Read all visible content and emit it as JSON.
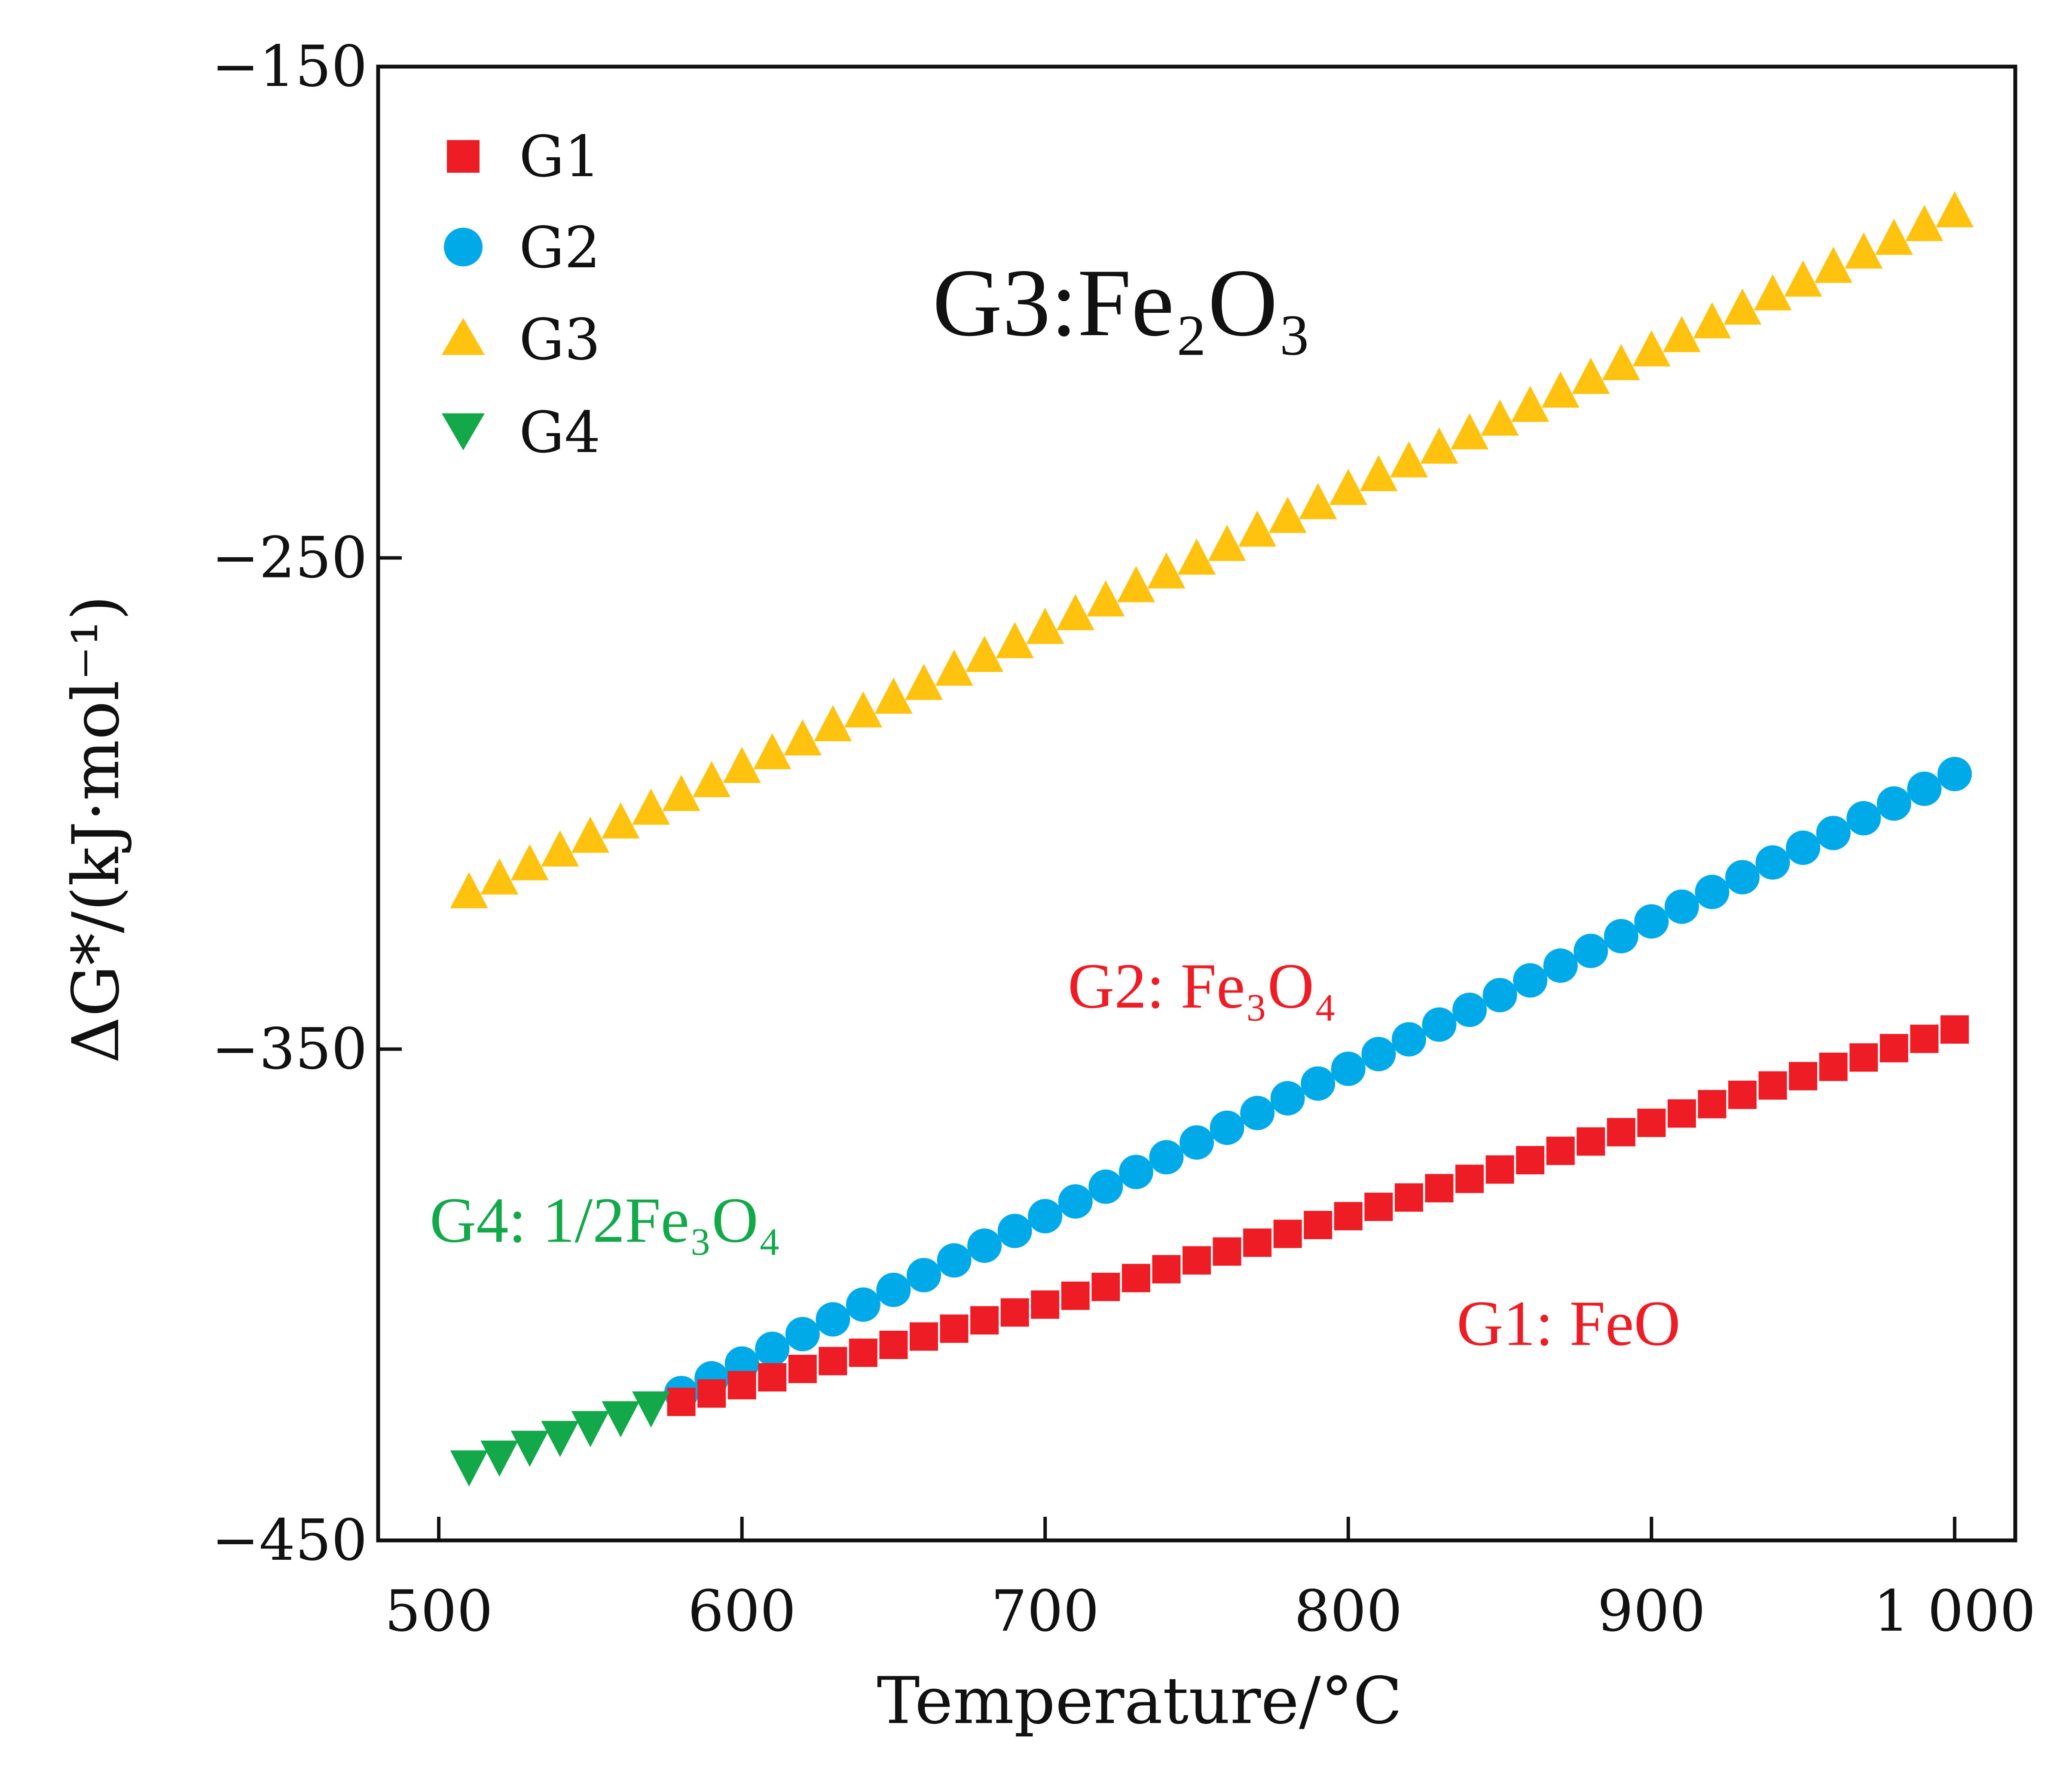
{
  "chart_data": {
    "type": "scatter",
    "title": "",
    "xlabel": "Temperature/°C",
    "ylabel": "ΔG*/(kJ·mol⁻¹)",
    "xlim": [
      480,
      1020
    ],
    "ylim": [
      -450,
      -150
    ],
    "x_ticks": [
      500,
      600,
      700,
      800,
      900,
      1000
    ],
    "x_tick_labels": [
      "500",
      "600",
      "700",
      "800",
      "900",
      "1 000"
    ],
    "y_ticks": [
      -150,
      -250,
      -350,
      -450
    ],
    "y_tick_labels": [
      "−150",
      "−250",
      "−350",
      "−450"
    ],
    "grid": false,
    "legend_position": "top-left",
    "colors": {
      "G1": "#ee1c25",
      "G2": "#00a9e8",
      "G3": "#ffc20e",
      "G4": "#13a84a"
    },
    "series": [
      {
        "name": "G1",
        "marker": "square",
        "color": "#ee1c25",
        "x": [
          580,
          590,
          600,
          610,
          620,
          630,
          640,
          650,
          660,
          670,
          680,
          690,
          700,
          710,
          720,
          730,
          740,
          750,
          760,
          770,
          780,
          790,
          800,
          810,
          820,
          830,
          840,
          850,
          860,
          870,
          880,
          890,
          900,
          910,
          920,
          930,
          940,
          950,
          960,
          970,
          980,
          990,
          1000
        ],
        "y": [
          -421.8,
          -420.1,
          -418.4,
          -416.8,
          -415.1,
          -413.5,
          -411.8,
          -410.2,
          -408.5,
          -406.9,
          -405.2,
          -403.6,
          -402.0,
          -400.2,
          -398.4,
          -396.6,
          -394.8,
          -393.0,
          -391.2,
          -389.4,
          -387.6,
          -385.8,
          -384.0,
          -382.1,
          -380.2,
          -378.3,
          -376.4,
          -374.5,
          -372.6,
          -370.7,
          -368.8,
          -366.9,
          -365.0,
          -363.1,
          -361.2,
          -359.3,
          -357.4,
          -355.5,
          -353.6,
          -351.7,
          -349.8,
          -347.9,
          -346.0
        ]
      },
      {
        "name": "G2",
        "marker": "circle",
        "color": "#00a9e8",
        "x": [
          580,
          590,
          600,
          610,
          620,
          630,
          640,
          650,
          660,
          670,
          680,
          690,
          700,
          710,
          720,
          730,
          740,
          750,
          760,
          770,
          780,
          790,
          800,
          810,
          820,
          830,
          840,
          850,
          860,
          870,
          880,
          890,
          900,
          910,
          920,
          930,
          940,
          950,
          960,
          970,
          980,
          990,
          1000
        ],
        "y": [
          -420.0,
          -417.0,
          -414.0,
          -411.0,
          -408.0,
          -405.0,
          -402.0,
          -399.0,
          -396.0,
          -393.0,
          -390.0,
          -387.0,
          -384.0,
          -381.0,
          -378.0,
          -375.0,
          -372.0,
          -369.0,
          -366.0,
          -363.0,
          -360.0,
          -357.0,
          -354.0,
          -351.0,
          -348.0,
          -345.0,
          -342.0,
          -339.0,
          -336.0,
          -333.0,
          -330.0,
          -327.0,
          -324.0,
          -321.0,
          -318.0,
          -315.0,
          -312.0,
          -309.0,
          -306.0,
          -303.0,
          -300.0,
          -297.0,
          -294.0
        ]
      },
      {
        "name": "G3",
        "marker": "triangle-up",
        "color": "#ffc20e",
        "x": [
          510,
          520,
          530,
          540,
          550,
          560,
          570,
          580,
          590,
          600,
          610,
          620,
          630,
          640,
          650,
          660,
          670,
          680,
          690,
          700,
          710,
          720,
          730,
          740,
          750,
          760,
          770,
          780,
          790,
          800,
          810,
          820,
          830,
          840,
          850,
          860,
          870,
          880,
          890,
          900,
          910,
          920,
          930,
          940,
          950,
          960,
          970,
          980,
          990,
          1000
        ],
        "y": [
          -318.0,
          -315.2,
          -312.3,
          -309.5,
          -306.7,
          -303.8,
          -301.0,
          -298.2,
          -295.4,
          -292.5,
          -289.7,
          -286.9,
          -284.0,
          -281.2,
          -278.4,
          -275.6,
          -272.7,
          -269.9,
          -267.1,
          -264.2,
          -261.4,
          -258.6,
          -255.7,
          -252.9,
          -250.1,
          -247.3,
          -244.4,
          -241.6,
          -238.8,
          -235.9,
          -233.1,
          -230.3,
          -227.5,
          -224.6,
          -221.8,
          -219.0,
          -216.1,
          -213.3,
          -210.5,
          -207.7,
          -204.8,
          -202.0,
          -199.2,
          -196.3,
          -193.5,
          -190.7,
          -187.8,
          -185.0,
          -182.2,
          -179.4
        ]
      },
      {
        "name": "G4",
        "marker": "triangle-down",
        "color": "#13a84a",
        "x": [
          510,
          520,
          530,
          540,
          550,
          560,
          570
        ],
        "y": [
          -435.0,
          -433.0,
          -431.0,
          -429.0,
          -427.0,
          -425.0,
          -423.0
        ]
      }
    ],
    "annotations": [
      {
        "id": "g3",
        "text": "G3:Fe₂O₃",
        "color": "#111111"
      },
      {
        "id": "g2",
        "text": "G2: Fe₃O₄",
        "color": "#ee1c25"
      },
      {
        "id": "g4",
        "text": "G4: 1/2Fe₃O₄",
        "color": "#13a84a"
      },
      {
        "id": "g1",
        "text": "G1: FeO",
        "color": "#ee1c25"
      }
    ]
  }
}
